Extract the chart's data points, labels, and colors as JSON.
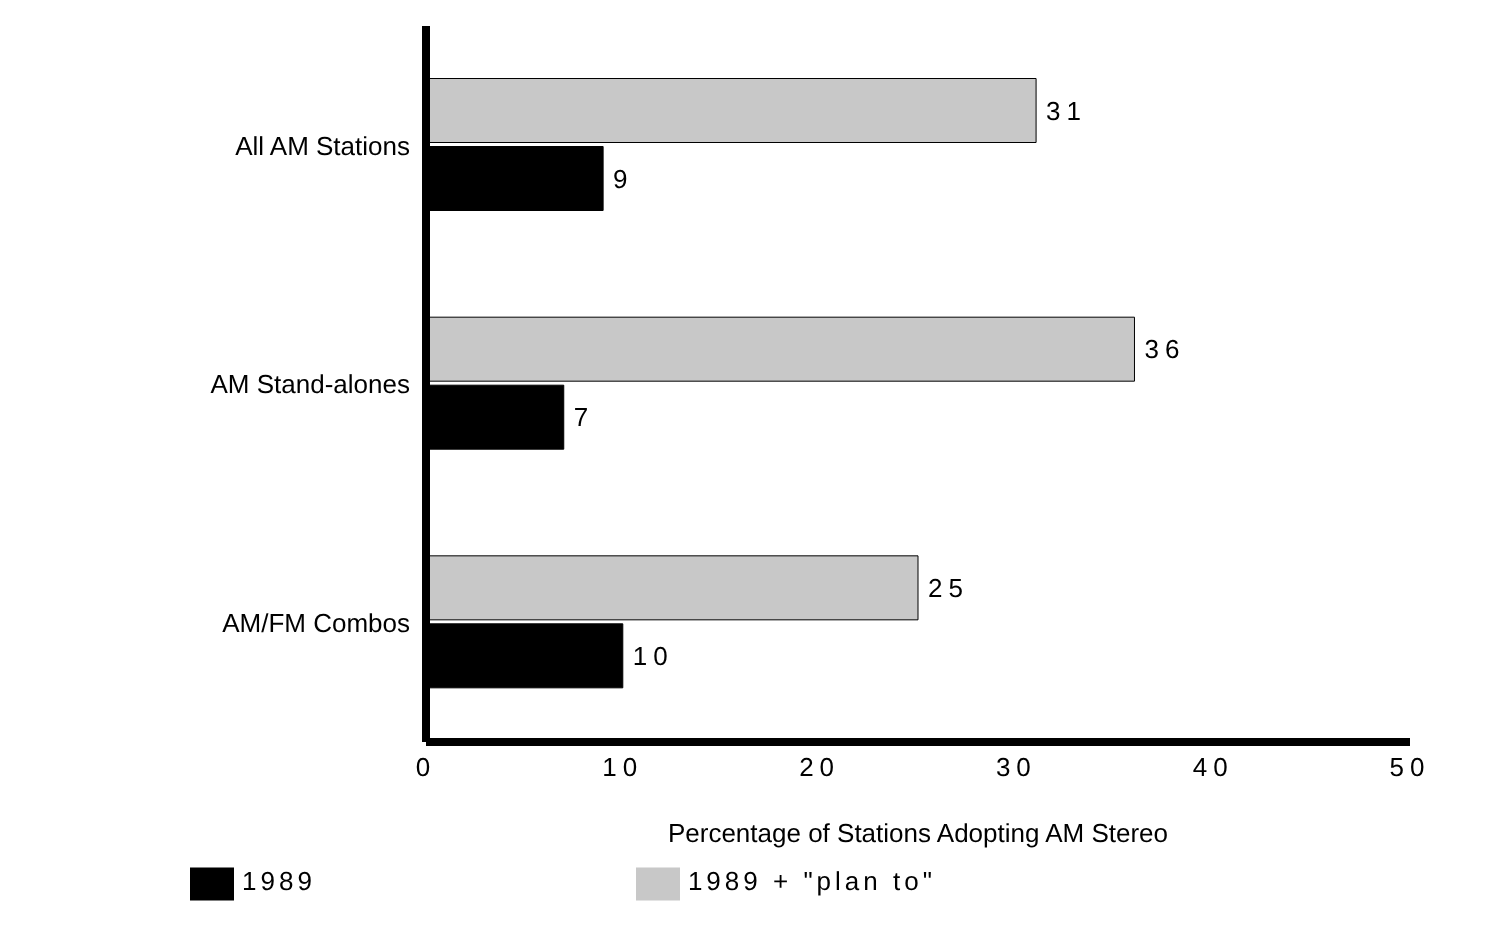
{
  "chart_data": {
    "type": "bar",
    "orientation": "horizontal",
    "xlabel": "Percentage of Stations Adopting AM Stereo",
    "categories": [
      "All AM Stations",
      "AM Stand-alones",
      "AM/FM Combos"
    ],
    "series": [
      {
        "name": "1989 + \"plan to\"",
        "color": "#c8c8c8",
        "values": [
          31,
          36,
          25
        ]
      },
      {
        "name": "1989",
        "color": "#000000",
        "values": [
          9,
          7,
          10
        ]
      }
    ],
    "xlim": [
      0,
      50
    ],
    "xticks": [
      0,
      10,
      20,
      30,
      40,
      50
    ],
    "data_labels": true,
    "grid": false,
    "legend": "bottom"
  }
}
